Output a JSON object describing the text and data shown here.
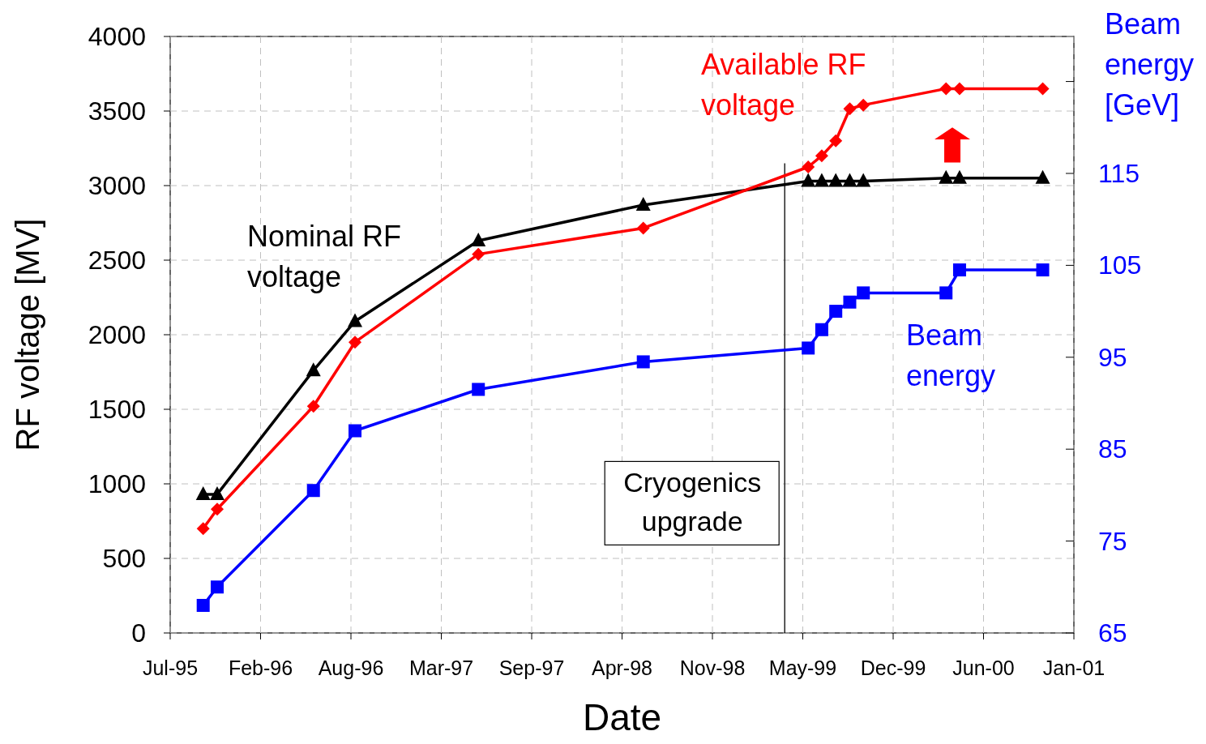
{
  "chart_data": {
    "type": "line",
    "xlabel": "Date",
    "ylabel": "RF voltage [MV]",
    "y2label": "Beam energy [GeV]",
    "x": [
      "1995-10-01",
      "1995-11-01",
      "1996-06-01",
      "1996-09-01",
      "1997-06-01",
      "1998-06-01",
      "1999-06-01",
      "1999-07-01",
      "1999-08-01",
      "1999-09-01",
      "1999-10-01",
      "2000-04-01",
      "2000-05-01",
      "2000-11-01"
    ],
    "series": [
      {
        "name": "Nominal RF voltage",
        "color": "#000000",
        "marker": "triangle",
        "values": [
          930,
          930,
          1760,
          2090,
          2630,
          2870,
          3030,
          3030,
          3030,
          3030,
          3030,
          3050,
          3050,
          3050
        ]
      },
      {
        "name": "Available RF voltage",
        "color": "#ff0000",
        "marker": "diamond",
        "values": [
          700,
          830,
          1520,
          1950,
          2540,
          2715,
          3125,
          3200,
          3300,
          3515,
          3540,
          3650,
          3650,
          3650
        ]
      },
      {
        "name": "Beam energy",
        "color": "#0000ff",
        "marker": "square",
        "axis": "y2",
        "values": [
          68,
          70,
          80.5,
          87,
          91.5,
          94.5,
          96,
          98,
          100,
          101,
          102,
          102,
          104.5,
          104.5
        ]
      }
    ],
    "xlim": [
      "1995-07-20",
      "2001-01-09"
    ],
    "xticks": [
      {
        "value": "1995-07-20",
        "label": "Jul-95"
      },
      {
        "value": "1996-02-05",
        "label": "Feb-96"
      },
      {
        "value": "1996-08-23",
        "label": "Aug-96"
      },
      {
        "value": "1997-03-11",
        "label": "Mar-97"
      },
      {
        "value": "1997-09-27",
        "label": "Sep-97"
      },
      {
        "value": "1998-04-15",
        "label": "Apr-98"
      },
      {
        "value": "1998-11-01",
        "label": "Nov-98"
      },
      {
        "value": "1999-05-20",
        "label": "May-99"
      },
      {
        "value": "1999-12-06",
        "label": "Dec-99"
      },
      {
        "value": "2000-06-23",
        "label": "Jun-00"
      },
      {
        "value": "2001-01-09",
        "label": "Jan-01"
      }
    ],
    "ylim": [
      0,
      4000
    ],
    "yticks": [
      0,
      500,
      1000,
      1500,
      2000,
      2500,
      3000,
      3500,
      4000
    ],
    "y2lim": [
      65,
      129.9
    ],
    "y2ticks": [
      65,
      75,
      85,
      95,
      105,
      115,
      {
        "value": 125,
        "label": null
      }
    ],
    "ref_lines": [
      {
        "axis": "x",
        "value": "1999-04-10",
        "label": "Cryogenics upgrade",
        "color": "#000000"
      }
    ],
    "grid": true
  }
}
